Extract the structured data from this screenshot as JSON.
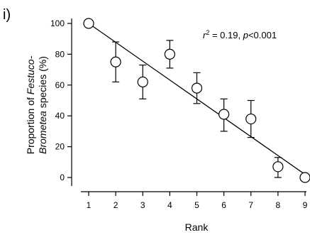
{
  "chart_data": {
    "type": "scatter",
    "panel_label": "i)",
    "xlabel": "Rank",
    "ylabel_line1_prefix": "Proportion of ",
    "ylabel_line1_italic": "Festuco-",
    "ylabel_line2_italic": "Brometea",
    "ylabel_line2_suffix": " species (%)",
    "xlim": [
      1,
      9
    ],
    "ylim": [
      0,
      100
    ],
    "x_ticks": [
      1,
      2,
      3,
      4,
      5,
      6,
      7,
      8,
      9
    ],
    "y_ticks": [
      0,
      20,
      40,
      60,
      80,
      100
    ],
    "grid": false,
    "points": [
      {
        "x": 1,
        "y": 100,
        "err_low": 100,
        "err_high": 100
      },
      {
        "x": 2,
        "y": 75,
        "err_low": 62,
        "err_high": 88
      },
      {
        "x": 3,
        "y": 62,
        "err_low": 51,
        "err_high": 73
      },
      {
        "x": 4,
        "y": 80,
        "err_low": 71,
        "err_high": 89
      },
      {
        "x": 5,
        "y": 58,
        "err_low": 48,
        "err_high": 68
      },
      {
        "x": 6,
        "y": 41,
        "err_low": 30,
        "err_high": 51
      },
      {
        "x": 7,
        "y": 38,
        "err_low": 26,
        "err_high": 50
      },
      {
        "x": 8,
        "y": 7,
        "err_low": 0,
        "err_high": 13
      },
      {
        "x": 9,
        "y": 0,
        "err_low": 0,
        "err_high": 0
      }
    ],
    "regression_line": {
      "x_start": 1,
      "y_start": 100,
      "x_end": 9,
      "y_end": 2
    },
    "annotation": {
      "r_symbol": "r",
      "r_sup": "2",
      "r_value": " = 0.19, ",
      "p_symbol": "p",
      "p_value": "<0.001"
    }
  }
}
